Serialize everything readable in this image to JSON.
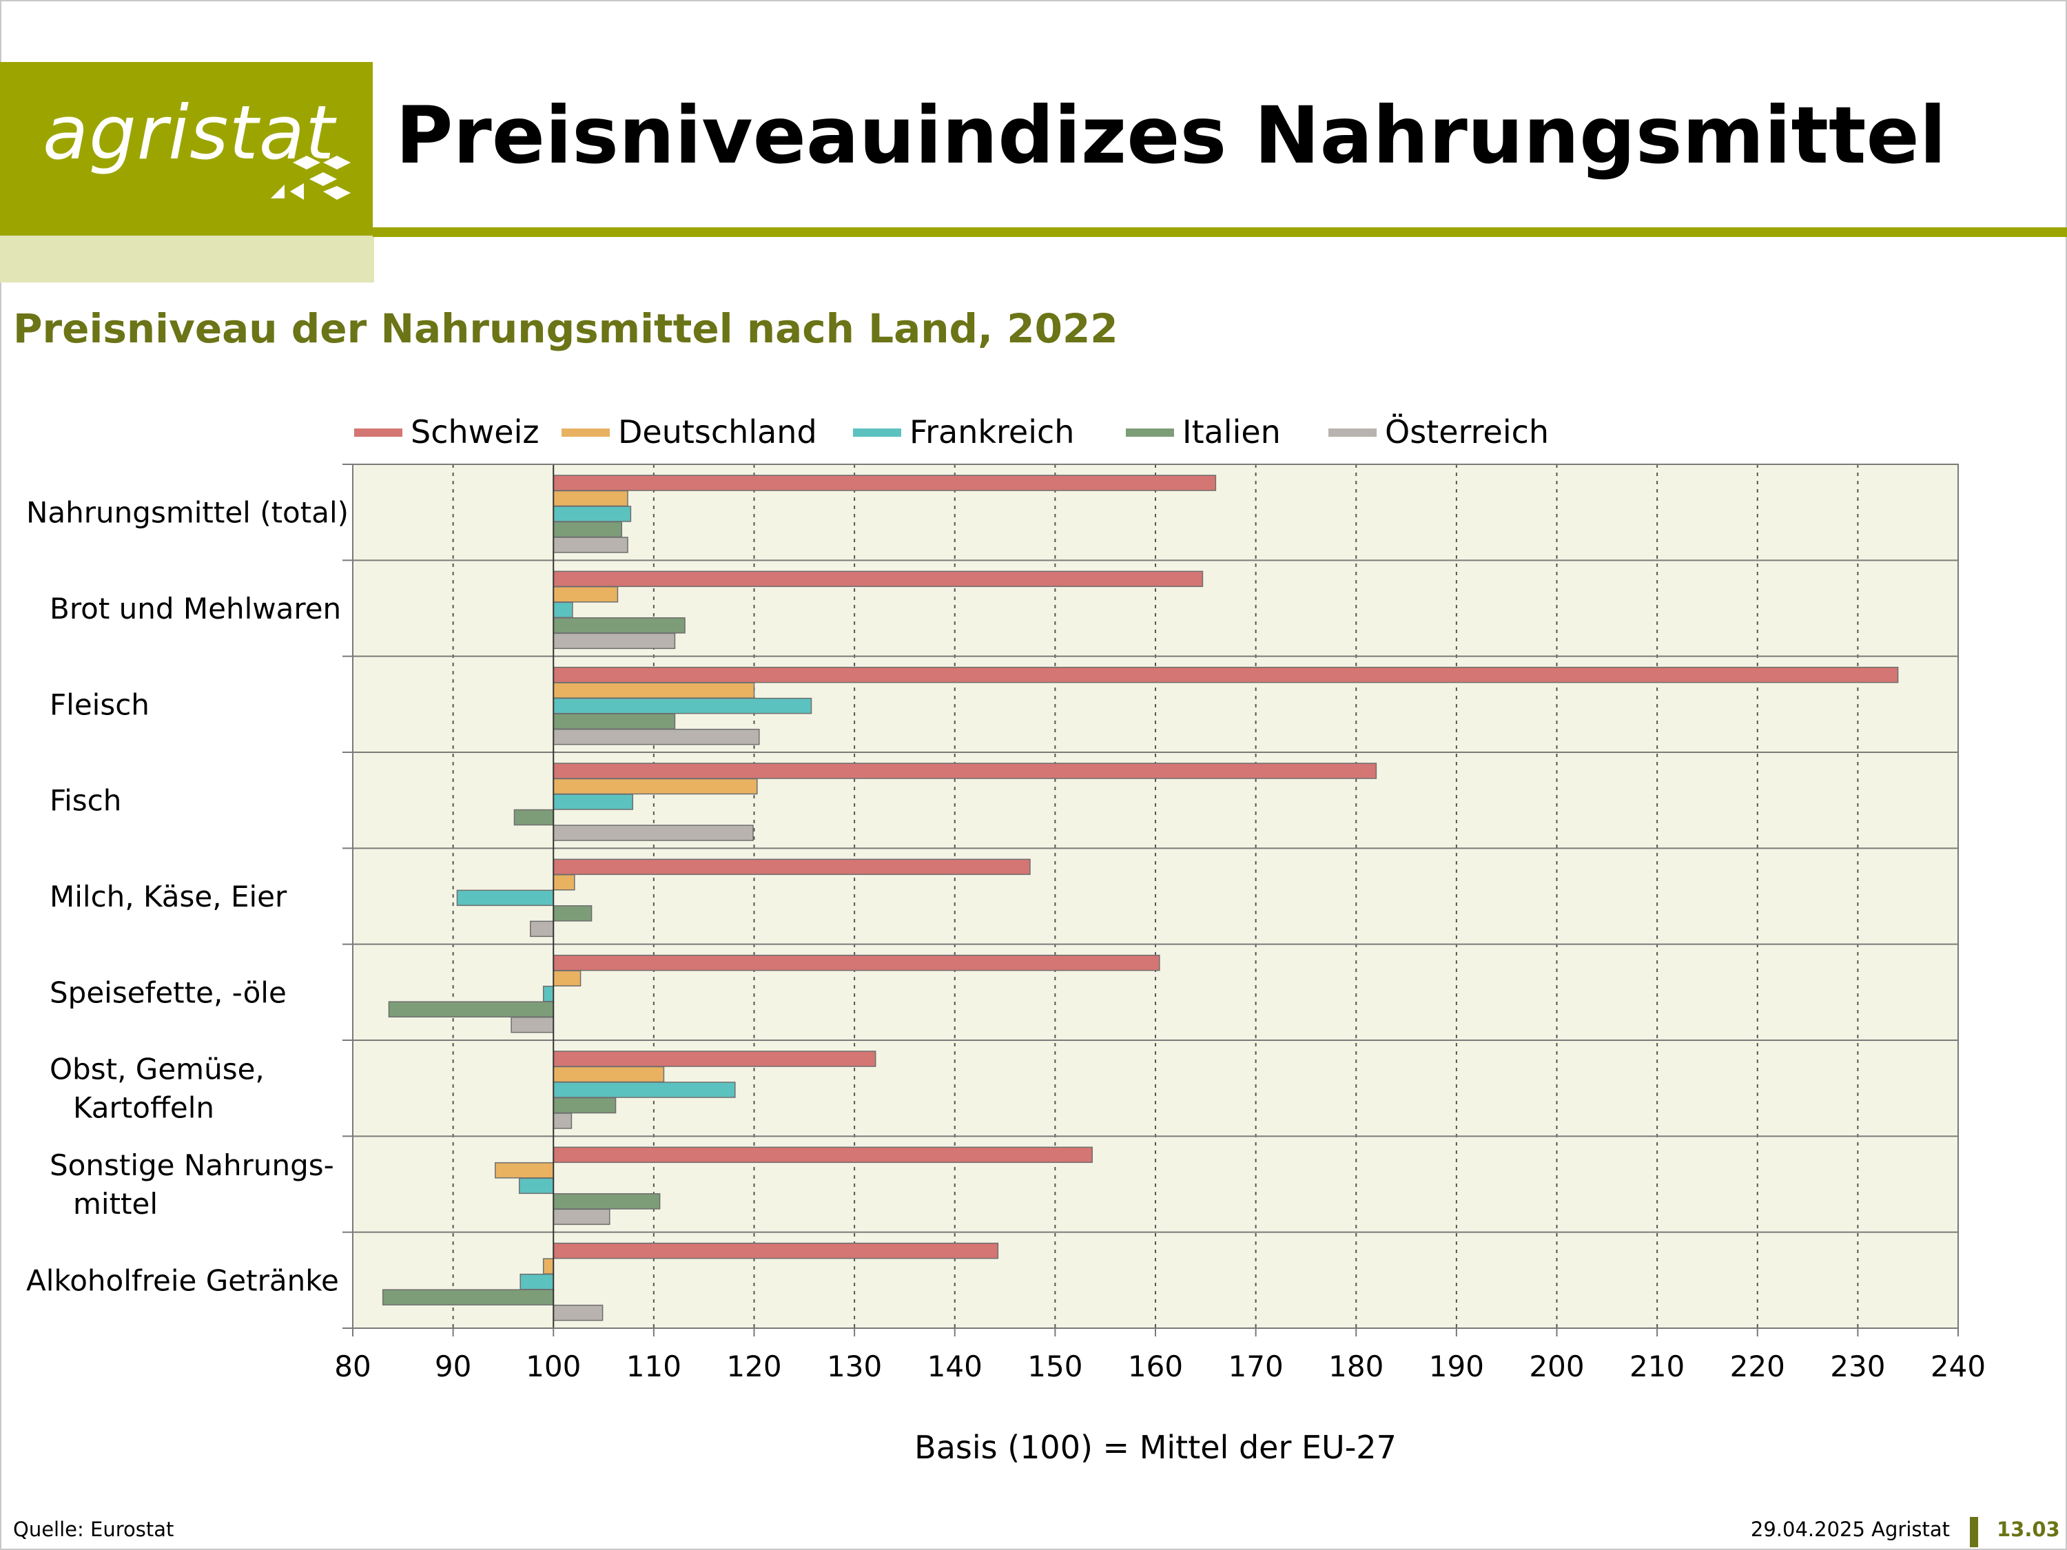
{
  "header": {
    "logo_text": "agristat",
    "title": "Preisniveauindizes Nahrungsmittel"
  },
  "subtitle": "Preisniveau der Nahrungsmittel nach Land, 2022",
  "colors": {
    "brand": "#9ca500",
    "brand_light": "#e2e5b6",
    "subtitle": "#6b7416",
    "plot_background": "#f4f4e4"
  },
  "footer": {
    "source": "Quelle: Eurostat",
    "date": "29.04.2025 Agristat",
    "page": "13.03"
  },
  "chart_data": {
    "type": "bar",
    "orientation": "horizontal",
    "baseline": 100,
    "categories": [
      [
        "Nahrungsmittel (total)"
      ],
      [
        "Brot und Mehlwaren"
      ],
      [
        "Fleisch"
      ],
      [
        "Fisch"
      ],
      [
        "Milch, Käse, Eier"
      ],
      [
        "Speisefette, -öle"
      ],
      [
        "Obst, Gemüse,",
        "Kartoffeln"
      ],
      [
        "Sonstige Nahrungs-",
        "mittel"
      ],
      [
        "Alkoholfreie Getränke"
      ]
    ],
    "series": [
      {
        "name": "Schweiz",
        "color": "#d47673",
        "values": [
          166,
          164.7,
          234,
          182,
          147.5,
          160.4,
          132.1,
          153.7,
          144.3
        ]
      },
      {
        "name": "Deutschland",
        "color": "#e8b261",
        "values": [
          107.4,
          106.4,
          120,
          120.3,
          102.1,
          102.7,
          111,
          94.2,
          99
        ]
      },
      {
        "name": "Frankreich",
        "color": "#5cc2bf",
        "values": [
          107.7,
          101.9,
          125.7,
          107.9,
          90.4,
          99,
          118.1,
          96.6,
          96.7
        ]
      },
      {
        "name": "Italien",
        "color": "#7d9d78",
        "values": [
          106.8,
          113.1,
          112.1,
          96.1,
          103.8,
          83.6,
          106.2,
          110.6,
          83
        ]
      },
      {
        "name": "Österreich",
        "color": "#b8b3ae",
        "values": [
          107.4,
          112.1,
          120.5,
          119.9,
          97.7,
          95.8,
          101.8,
          105.6,
          104.9
        ]
      }
    ],
    "xlim": [
      80,
      240
    ],
    "xticks": [
      80,
      90,
      100,
      110,
      120,
      130,
      140,
      150,
      160,
      170,
      180,
      190,
      200,
      210,
      220,
      230,
      240
    ],
    "xlabel": "Basis (100) = Mittel der EU-27",
    "grid": "vertical dashed",
    "legend": "top"
  }
}
